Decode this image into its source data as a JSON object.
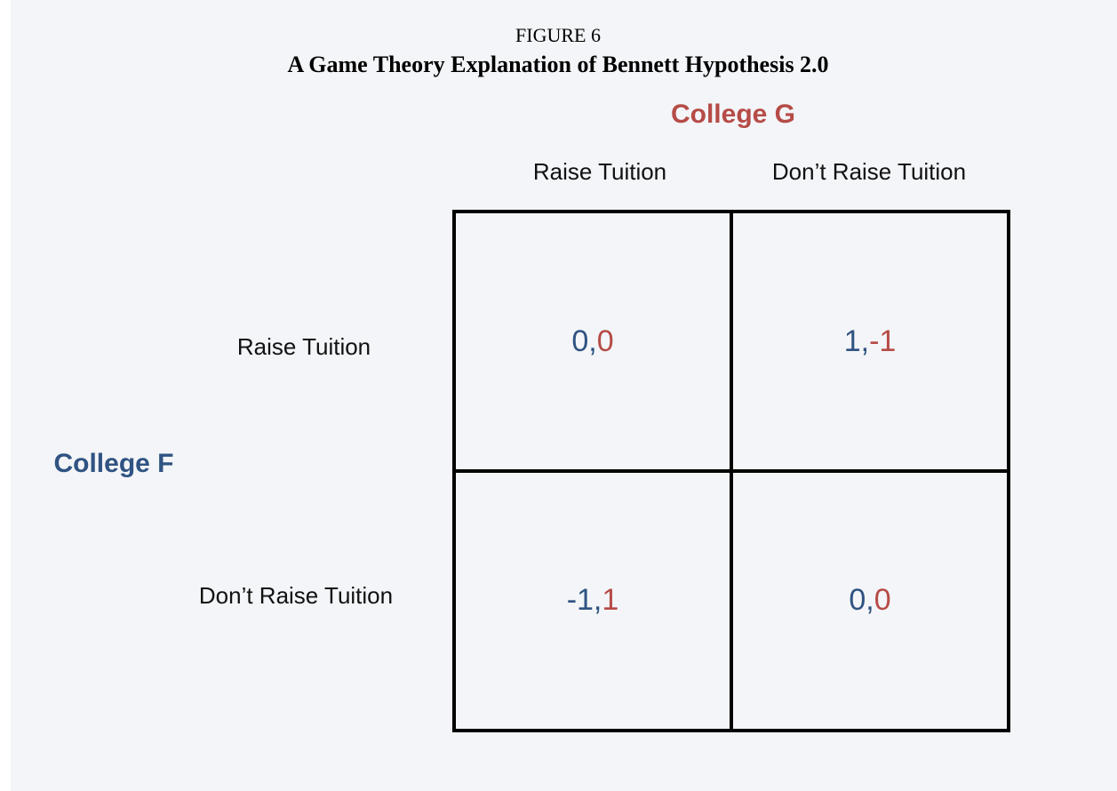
{
  "header": {
    "figure_label": "FIGURE 6",
    "title": "A Game Theory Explanation of Bennett Hypothesis 2.0"
  },
  "column_player": {
    "name": "College G",
    "color": "#b64b47",
    "strategies": [
      "Raise Tuition",
      "Don’t Raise Tuition"
    ]
  },
  "row_player": {
    "name": "College F",
    "color": "#2f5382",
    "strategies": [
      "Raise Tuition",
      "Don’t Raise Tuition"
    ]
  },
  "separator": ",",
  "payoffs": [
    [
      {
        "f": 0,
        "g": 0
      },
      {
        "f": 1,
        "g": -1
      }
    ],
    [
      {
        "f": -1,
        "g": 1
      },
      {
        "f": 0,
        "g": 0
      }
    ]
  ]
}
